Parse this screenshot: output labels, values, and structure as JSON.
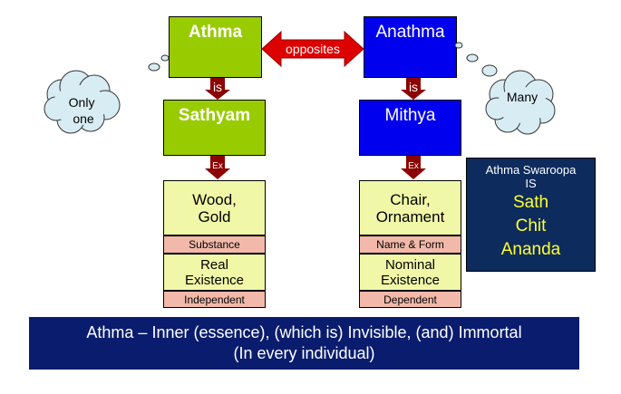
{
  "left": {
    "top": "Athma",
    "is_label": "is",
    "middle": "Sathyam",
    "ex_label": "Ex",
    "example": "Wood,\nGold",
    "substance": "Substance",
    "existence": "Real\nExistence",
    "dependence": "Independent"
  },
  "right": {
    "top": "Anathma",
    "is_label": "is",
    "middle": "Mithya",
    "ex_label": "Ex",
    "example": "Chair,\nOrnament",
    "substance": "Name & Form",
    "existence": "Nominal\nExistence",
    "dependence": "Dependent"
  },
  "opposites": "opposites",
  "thought_left": "Only\none",
  "thought_right": "Many",
  "swaroopa": {
    "heading1": "Athma Swaroopa",
    "heading2": "IS",
    "words": [
      "Sath",
      "Chit",
      "Ananda"
    ]
  },
  "banner": {
    "line1": "Athma – Inner (essence), (which is) Invisible, (and) Immortal",
    "line2": "(In every individual)"
  },
  "colors": {
    "green": "#99cc00",
    "blue": "#0000ee",
    "arrow_red": "#dd0000",
    "arrow_dark": "#8b0000",
    "cream": "#f0f8a8",
    "pink": "#f2b9aa",
    "navy": "#0d2b5c",
    "banner_navy": "#0a1c6e",
    "yellow": "#ffff33"
  }
}
